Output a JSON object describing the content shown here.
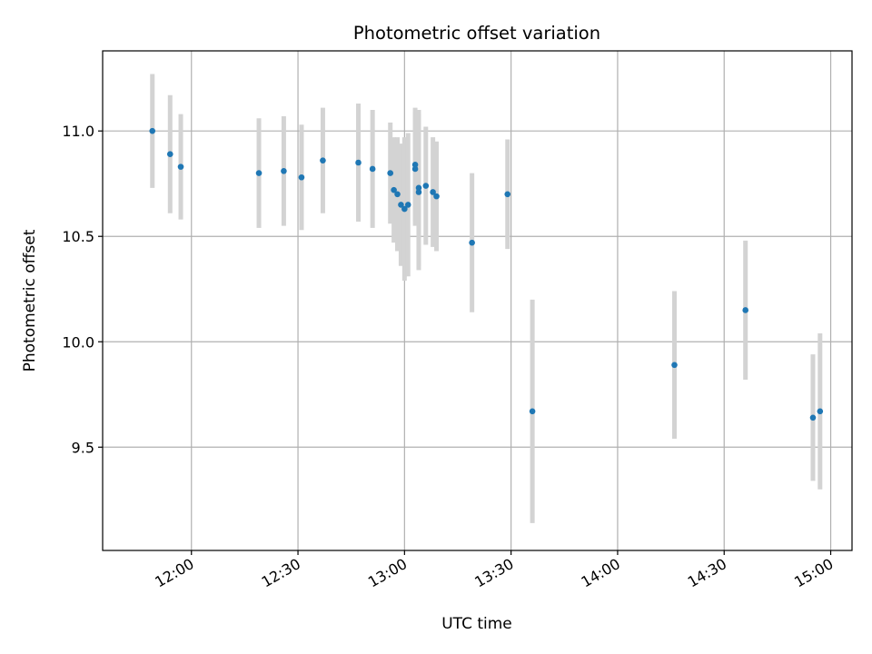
{
  "chart_data": {
    "type": "scatter",
    "title": "Photometric offset variation",
    "xlabel": "UTC time",
    "ylabel": "Photometric offset",
    "xlim": [
      "11:35",
      "15:06"
    ],
    "ylim": [
      9.01,
      11.38
    ],
    "x_ticks": [
      "12:00",
      "12:30",
      "13:00",
      "13:30",
      "14:00",
      "14:30",
      "15:00"
    ],
    "y_ticks": [
      "9.5",
      "10.0",
      "10.5",
      "11.0"
    ],
    "grid": true,
    "colors": {
      "point": "#1f77b4",
      "errorbar": "#d3d3d3",
      "grid": "#b0b0b0"
    },
    "points": [
      {
        "x": "11:49",
        "y": 11.0,
        "err": 0.27
      },
      {
        "x": "11:54",
        "y": 10.89,
        "err": 0.28
      },
      {
        "x": "11:57",
        "y": 10.83,
        "err": 0.25
      },
      {
        "x": "12:19",
        "y": 10.8,
        "err": 0.26
      },
      {
        "x": "12:26",
        "y": 10.81,
        "err": 0.26
      },
      {
        "x": "12:31",
        "y": 10.78,
        "err": 0.25
      },
      {
        "x": "12:37",
        "y": 10.86,
        "err": 0.25
      },
      {
        "x": "12:47",
        "y": 10.85,
        "err": 0.28
      },
      {
        "x": "12:51",
        "y": 10.82,
        "err": 0.28
      },
      {
        "x": "12:56",
        "y": 10.8,
        "err": 0.24
      },
      {
        "x": "12:57",
        "y": 10.72,
        "err": 0.25
      },
      {
        "x": "12:58",
        "y": 10.7,
        "err": 0.27
      },
      {
        "x": "12:59",
        "y": 10.65,
        "err": 0.29
      },
      {
        "x": "13:00",
        "y": 10.63,
        "err": 0.34
      },
      {
        "x": "13:01",
        "y": 10.65,
        "err": 0.34
      },
      {
        "x": "13:03",
        "y": 10.84,
        "err": 0.27
      },
      {
        "x": "13:03",
        "y": 10.82,
        "err": 0.27
      },
      {
        "x": "13:04",
        "y": 10.73,
        "err": 0.37
      },
      {
        "x": "13:04",
        "y": 10.71,
        "err": 0.37
      },
      {
        "x": "13:06",
        "y": 10.74,
        "err": 0.28
      },
      {
        "x": "13:08",
        "y": 10.71,
        "err": 0.26
      },
      {
        "x": "13:09",
        "y": 10.69,
        "err": 0.26
      },
      {
        "x": "13:19",
        "y": 10.47,
        "err": 0.33
      },
      {
        "x": "13:29",
        "y": 10.7,
        "err": 0.26
      },
      {
        "x": "13:36",
        "y": 9.67,
        "err": 0.53
      },
      {
        "x": "14:16",
        "y": 9.89,
        "err": 0.35
      },
      {
        "x": "14:36",
        "y": 10.15,
        "err": 0.33
      },
      {
        "x": "14:55",
        "y": 9.64,
        "err": 0.3
      },
      {
        "x": "14:57",
        "y": 9.67,
        "err": 0.37
      }
    ]
  }
}
